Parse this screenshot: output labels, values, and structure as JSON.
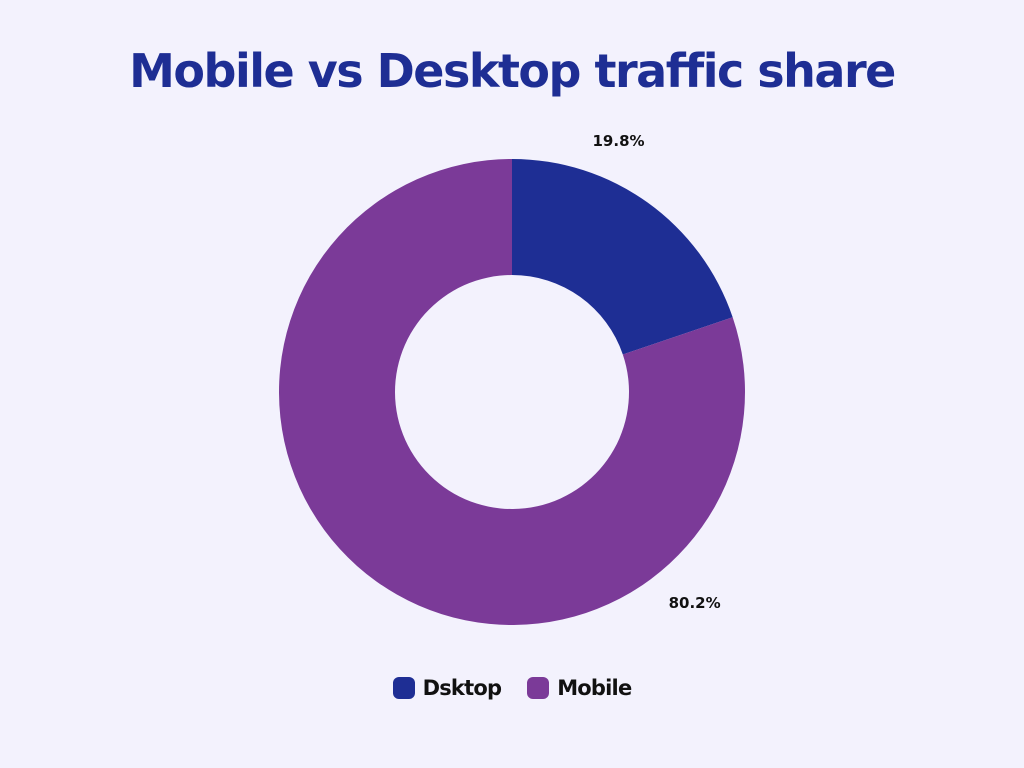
{
  "chart_data": {
    "type": "pie",
    "variant": "donut",
    "title": "Mobile vs Desktop traffic share",
    "slices": [
      {
        "label": "Dsktop",
        "value": 19.8,
        "value_label": "19.8%",
        "color": "#1e2e94"
      },
      {
        "label": "Mobile",
        "value": 80.2,
        "value_label": "80.2%",
        "color": "#7b3a98"
      }
    ],
    "legend_position": "bottom",
    "background": "#f3f2fd",
    "title_color": "#1e2e94"
  }
}
